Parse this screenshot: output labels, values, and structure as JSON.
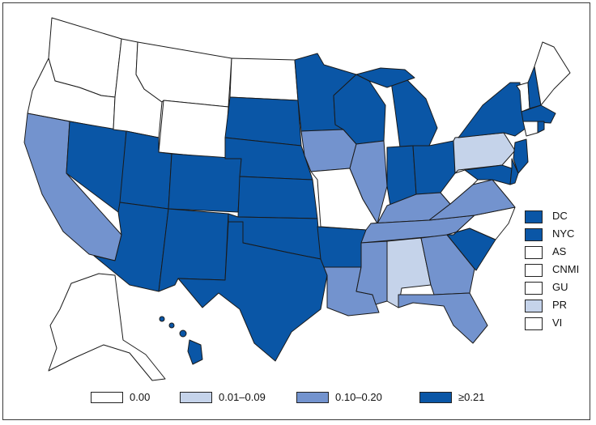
{
  "colors": {
    "none": "#ffffff",
    "low": "#c5d3ea",
    "mid": "#7393ce",
    "high": "#0a56a6",
    "border": "#1a1a1a"
  },
  "region_legend": [
    {
      "label": "DC",
      "level": "high"
    },
    {
      "label": "NYC",
      "level": "high"
    },
    {
      "label": "AS",
      "level": "none"
    },
    {
      "label": "CNMI",
      "level": "none"
    },
    {
      "label": "GU",
      "level": "none"
    },
    {
      "label": "PR",
      "level": "low"
    },
    {
      "label": "VI",
      "level": "none"
    }
  ],
  "value_legend": [
    {
      "label": "0.00",
      "level": "none"
    },
    {
      "label": "0.01–0.09",
      "level": "low"
    },
    {
      "label": "0.10–0.20",
      "level": "mid"
    },
    {
      "label": "≥0.21",
      "level": "high"
    }
  ],
  "states": {
    "WA": "none",
    "OR": "none",
    "ID": "none",
    "MT": "none",
    "WY": "none",
    "ND": "none",
    "MO": "none",
    "WV": "none",
    "NC": "none",
    "VT": "none",
    "ME": "none",
    "CT": "none",
    "AK": "none",
    "AL": "low",
    "PA": "low",
    "CA": "mid",
    "IA": "mid",
    "IL": "mid",
    "KY": "mid",
    "VA": "mid",
    "TN": "mid",
    "MS": "mid",
    "LA": "mid",
    "GA": "mid",
    "FL": "mid",
    "NV": "high",
    "UT": "high",
    "CO": "high",
    "AZ": "high",
    "NM": "high",
    "TX": "high",
    "OK": "high",
    "KS": "high",
    "NE": "high",
    "SD": "high",
    "MN": "high",
    "WI": "high",
    "MI": "high",
    "IN": "high",
    "OH": "high",
    "NY": "high",
    "NJ": "high",
    "DE": "high",
    "MD": "high",
    "SC": "high",
    "AR": "high",
    "NH": "high",
    "MA": "high",
    "RI": "high",
    "HI": "high"
  }
}
